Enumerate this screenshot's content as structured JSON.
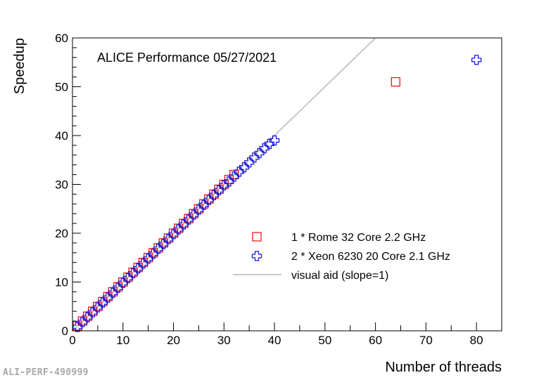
{
  "watermark": "ALI-PERF-490999",
  "chart_data": {
    "type": "scatter",
    "annotation": "ALICE Performance 05/27/2021",
    "xlabel": "Number of threads",
    "ylabel": "Speedup",
    "xlim": [
      0,
      85
    ],
    "ylim": [
      0,
      60
    ],
    "x_ticks": [
      0,
      10,
      20,
      30,
      40,
      50,
      60,
      70,
      80
    ],
    "y_ticks": [
      0,
      10,
      20,
      30,
      40,
      50,
      60
    ],
    "legend_position": "lower-right",
    "series": [
      {
        "name": "1 * Rome 32 Core 2.2 GHz",
        "marker": "open-square",
        "color": "#e8181e",
        "x": [
          1,
          2,
          3,
          4,
          5,
          6,
          7,
          8,
          9,
          10,
          11,
          12,
          13,
          14,
          15,
          16,
          17,
          18,
          19,
          20,
          21,
          22,
          23,
          24,
          25,
          26,
          27,
          28,
          29,
          30,
          31,
          32,
          64
        ],
        "y": [
          1,
          2,
          3,
          4,
          5,
          6,
          7,
          8,
          9,
          10,
          11,
          12,
          13,
          14,
          15,
          16,
          17,
          18,
          19,
          20,
          21,
          22,
          23,
          24,
          25,
          26,
          27,
          28,
          29,
          30,
          31,
          32,
          51
        ]
      },
      {
        "name": "2 * Xeon 6230 20 Core 2.1 GHz",
        "marker": "open-cross",
        "color": "#1a1ad6",
        "x": [
          1,
          2,
          3,
          4,
          5,
          6,
          7,
          8,
          9,
          10,
          11,
          12,
          13,
          14,
          15,
          16,
          17,
          18,
          19,
          20,
          21,
          22,
          23,
          24,
          25,
          26,
          27,
          28,
          29,
          30,
          31,
          32,
          33,
          34,
          35,
          36,
          37,
          38,
          39,
          40,
          80
        ],
        "y": [
          0.8,
          1.8,
          2.8,
          3.8,
          4.8,
          5.8,
          6.8,
          7.8,
          8.8,
          9.8,
          10.8,
          11.8,
          12.8,
          13.8,
          14.8,
          15.8,
          16.8,
          17.8,
          18.8,
          19.8,
          20.8,
          21.8,
          22.8,
          23.8,
          24.8,
          25.8,
          26.8,
          27.8,
          28.8,
          29.8,
          30.6,
          31.6,
          32.6,
          33.5,
          34.5,
          35.5,
          36.4,
          37.4,
          38.3,
          39.0,
          55.5
        ]
      }
    ],
    "reference_line": {
      "name": "visual aid (slope=1)",
      "color": "#c8c8c8",
      "slope": 1,
      "x_range": [
        0,
        60
      ]
    }
  }
}
